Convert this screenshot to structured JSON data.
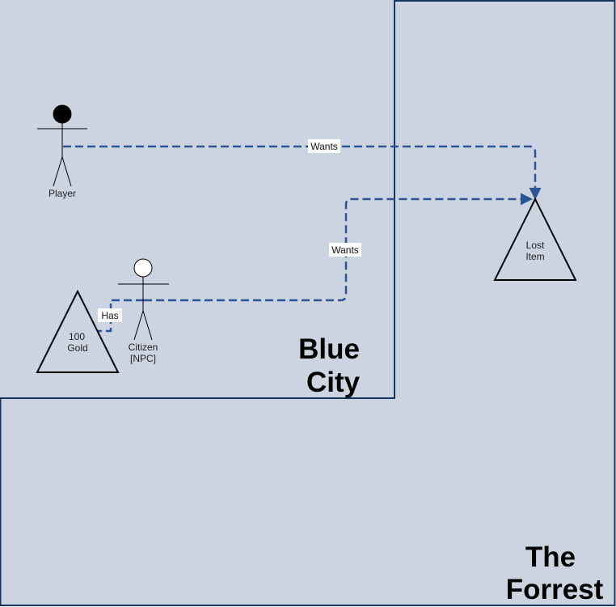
{
  "regions": {
    "forest": {
      "label_line1": "The",
      "label_line2": "Forrest"
    },
    "city": {
      "label_line1": "Blue",
      "label_line2": "City"
    }
  },
  "actors": {
    "player": {
      "label": "Player"
    },
    "citizen": {
      "label_line1": "Citizen",
      "label_line2": "[NPC]"
    }
  },
  "items": {
    "lost_item": {
      "label_line1": "Lost",
      "label_line2": "Item"
    },
    "gold": {
      "label_line1": "100",
      "label_line2": "Gold"
    }
  },
  "edges": {
    "player_wants": {
      "label": "Wants"
    },
    "citizen_wants": {
      "label": "Wants"
    },
    "citizen_has": {
      "label": "Has"
    }
  },
  "colors": {
    "background": "#cdd4e1",
    "border": "#17365d",
    "edge": "#2b5597"
  }
}
